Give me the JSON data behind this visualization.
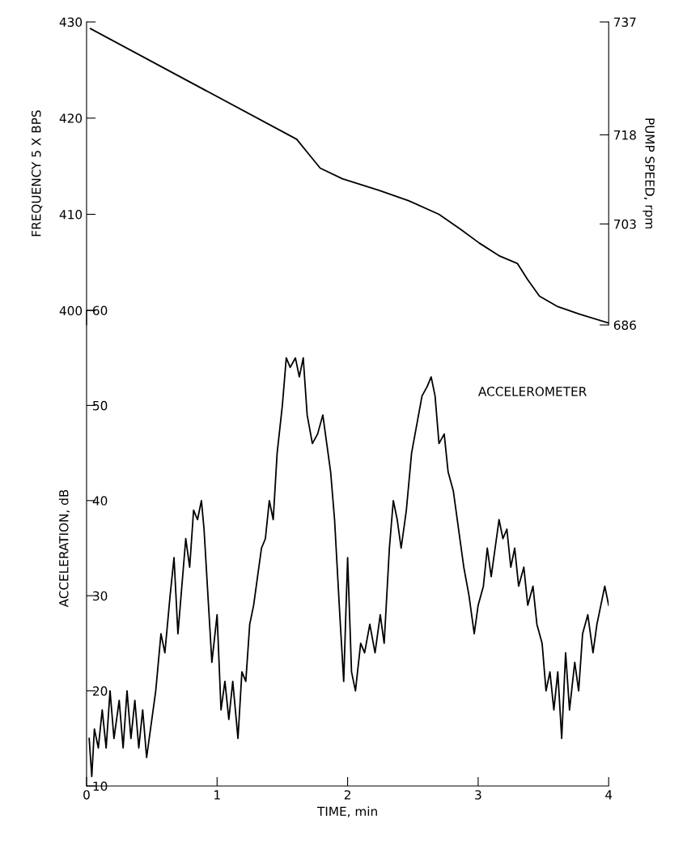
{
  "chart_data": [
    {
      "type": "line",
      "ylabel": "FREQUENCY 5 X BPS",
      "y2label": "PUMP SPEED, rpm",
      "xlim": [
        0,
        4
      ],
      "ylim": [
        398.5,
        430
      ],
      "yticks": [
        400,
        410,
        420,
        430
      ],
      "y2lim": [
        686,
        737
      ],
      "y2ticks": [
        686,
        703,
        718,
        737
      ],
      "tick_labels": "y",
      "grid": false,
      "legend": false,
      "series": [
        {
          "color": "#000000",
          "x": [
            0.03,
            1.61,
            1.7,
            1.79,
            1.96,
            2.24,
            2.47,
            2.7,
            2.87,
            3.01,
            3.16,
            3.3,
            3.38,
            3.47,
            3.61,
            3.78,
            4.0
          ],
          "values": [
            429.3,
            417.8,
            416.3,
            414.8,
            413.7,
            412.5,
            411.4,
            410.0,
            408.4,
            407.0,
            405.7,
            404.9,
            403.2,
            401.5,
            400.4,
            399.6,
            398.7
          ]
        }
      ]
    },
    {
      "type": "line",
      "xlabel": "TIME, min",
      "ylabel": "ACCELERATION, dB",
      "annotations": [
        "ACCELEROMETER"
      ],
      "xlim": [
        0,
        4
      ],
      "xticks": [
        0,
        1,
        2,
        3,
        4
      ],
      "ylim": [
        10,
        60
      ],
      "yticks": [
        10,
        20,
        30,
        40,
        50,
        60
      ],
      "grid": false,
      "legend": false,
      "series": [
        {
          "color": "#000000",
          "x": [
            0.02,
            0.04,
            0.06,
            0.09,
            0.12,
            0.15,
            0.18,
            0.21,
            0.25,
            0.28,
            0.31,
            0.34,
            0.37,
            0.4,
            0.43,
            0.46,
            0.5,
            0.53,
            0.57,
            0.6,
            0.64,
            0.67,
            0.7,
            0.73,
            0.76,
            0.79,
            0.82,
            0.85,
            0.88,
            0.9,
            0.93,
            0.96,
            1.0,
            1.03,
            1.06,
            1.09,
            1.12,
            1.16,
            1.19,
            1.22,
            1.25,
            1.28,
            1.31,
            1.34,
            1.37,
            1.4,
            1.43,
            1.46,
            1.5,
            1.53,
            1.56,
            1.6,
            1.63,
            1.66,
            1.69,
            1.73,
            1.77,
            1.81,
            1.84,
            1.87,
            1.9,
            1.94,
            1.97,
            2.0,
            2.03,
            2.06,
            2.1,
            2.13,
            2.17,
            2.21,
            2.25,
            2.28,
            2.32,
            2.35,
            2.38,
            2.41,
            2.45,
            2.49,
            2.53,
            2.57,
            2.61,
            2.64,
            2.67,
            2.7,
            2.74,
            2.77,
            2.81,
            2.85,
            2.89,
            2.93,
            2.97,
            3.0,
            3.04,
            3.07,
            3.1,
            3.13,
            3.16,
            3.19,
            3.22,
            3.25,
            3.28,
            3.31,
            3.35,
            3.38,
            3.42,
            3.45,
            3.49,
            3.52,
            3.55,
            3.58,
            3.61,
            3.64,
            3.67,
            3.7,
            3.74,
            3.77,
            3.8,
            3.84,
            3.88,
            3.91,
            3.94,
            3.97,
            4.0
          ],
          "values": [
            15,
            11,
            16,
            14,
            18,
            14,
            20,
            15,
            19,
            14,
            20,
            15,
            19,
            14,
            18,
            13,
            17,
            20,
            26,
            24,
            30,
            34,
            26,
            31,
            36,
            33,
            39,
            38,
            40,
            37,
            30,
            23,
            28,
            18,
            21,
            17,
            21,
            15,
            22,
            21,
            27,
            29,
            32,
            35,
            36,
            40,
            38,
            45,
            50,
            55,
            54,
            55,
            53,
            55,
            49,
            46,
            47,
            49,
            46,
            43,
            38,
            28,
            21,
            34,
            22,
            20,
            25,
            24,
            27,
            24,
            28,
            25,
            35,
            40,
            38,
            35,
            39,
            45,
            48,
            51,
            52,
            53,
            51,
            46,
            47,
            43,
            41,
            37,
            33,
            30,
            26,
            29,
            31,
            35,
            32,
            35,
            38,
            36,
            37,
            33,
            35,
            31,
            33,
            29,
            31,
            27,
            25,
            20,
            22,
            18,
            22,
            15,
            24,
            18,
            23,
            20,
            26,
            28,
            24,
            27,
            29,
            31,
            29
          ]
        }
      ]
    }
  ]
}
